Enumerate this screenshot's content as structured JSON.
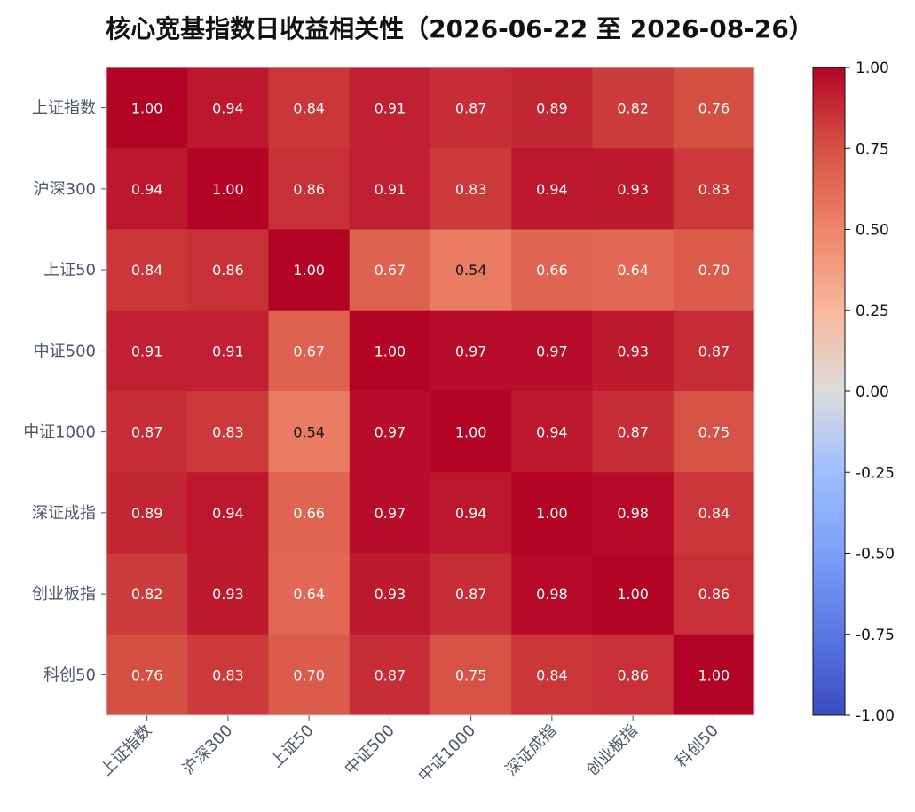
{
  "chart_data": {
    "type": "heatmap",
    "title": "核心宽基指数日收益相关性（2026-06-22 至 2026-08-26）",
    "labels": [
      "上证指数",
      "沪深300",
      "上证50",
      "中证500",
      "中证1000",
      "深证成指",
      "创业板指",
      "科创50"
    ],
    "values": [
      [
        1.0,
        0.94,
        0.84,
        0.91,
        0.87,
        0.89,
        0.82,
        0.76
      ],
      [
        0.94,
        1.0,
        0.86,
        0.91,
        0.83,
        0.94,
        0.93,
        0.83
      ],
      [
        0.84,
        0.86,
        1.0,
        0.67,
        0.54,
        0.66,
        0.64,
        0.7
      ],
      [
        0.91,
        0.91,
        0.67,
        1.0,
        0.97,
        0.97,
        0.93,
        0.87
      ],
      [
        0.87,
        0.83,
        0.54,
        0.97,
        1.0,
        0.94,
        0.87,
        0.75
      ],
      [
        0.89,
        0.94,
        0.66,
        0.97,
        0.94,
        1.0,
        0.98,
        0.84
      ],
      [
        0.82,
        0.93,
        0.64,
        0.93,
        0.87,
        0.98,
        1.0,
        0.86
      ],
      [
        0.76,
        0.83,
        0.7,
        0.87,
        0.75,
        0.84,
        0.86,
        1.0
      ]
    ],
    "vmin": -1.0,
    "vmax": 1.0,
    "colormap": "coolwarm",
    "colorbar_ticks": [
      "1.00",
      "0.75",
      "0.50",
      "0.25",
      "0.00",
      "-0.25",
      "-0.50",
      "-0.75",
      "-1.00"
    ],
    "colorbar_tick_values": [
      1.0,
      0.75,
      0.5,
      0.25,
      0.0,
      -0.25,
      -0.5,
      -0.75,
      -1.0
    ]
  }
}
